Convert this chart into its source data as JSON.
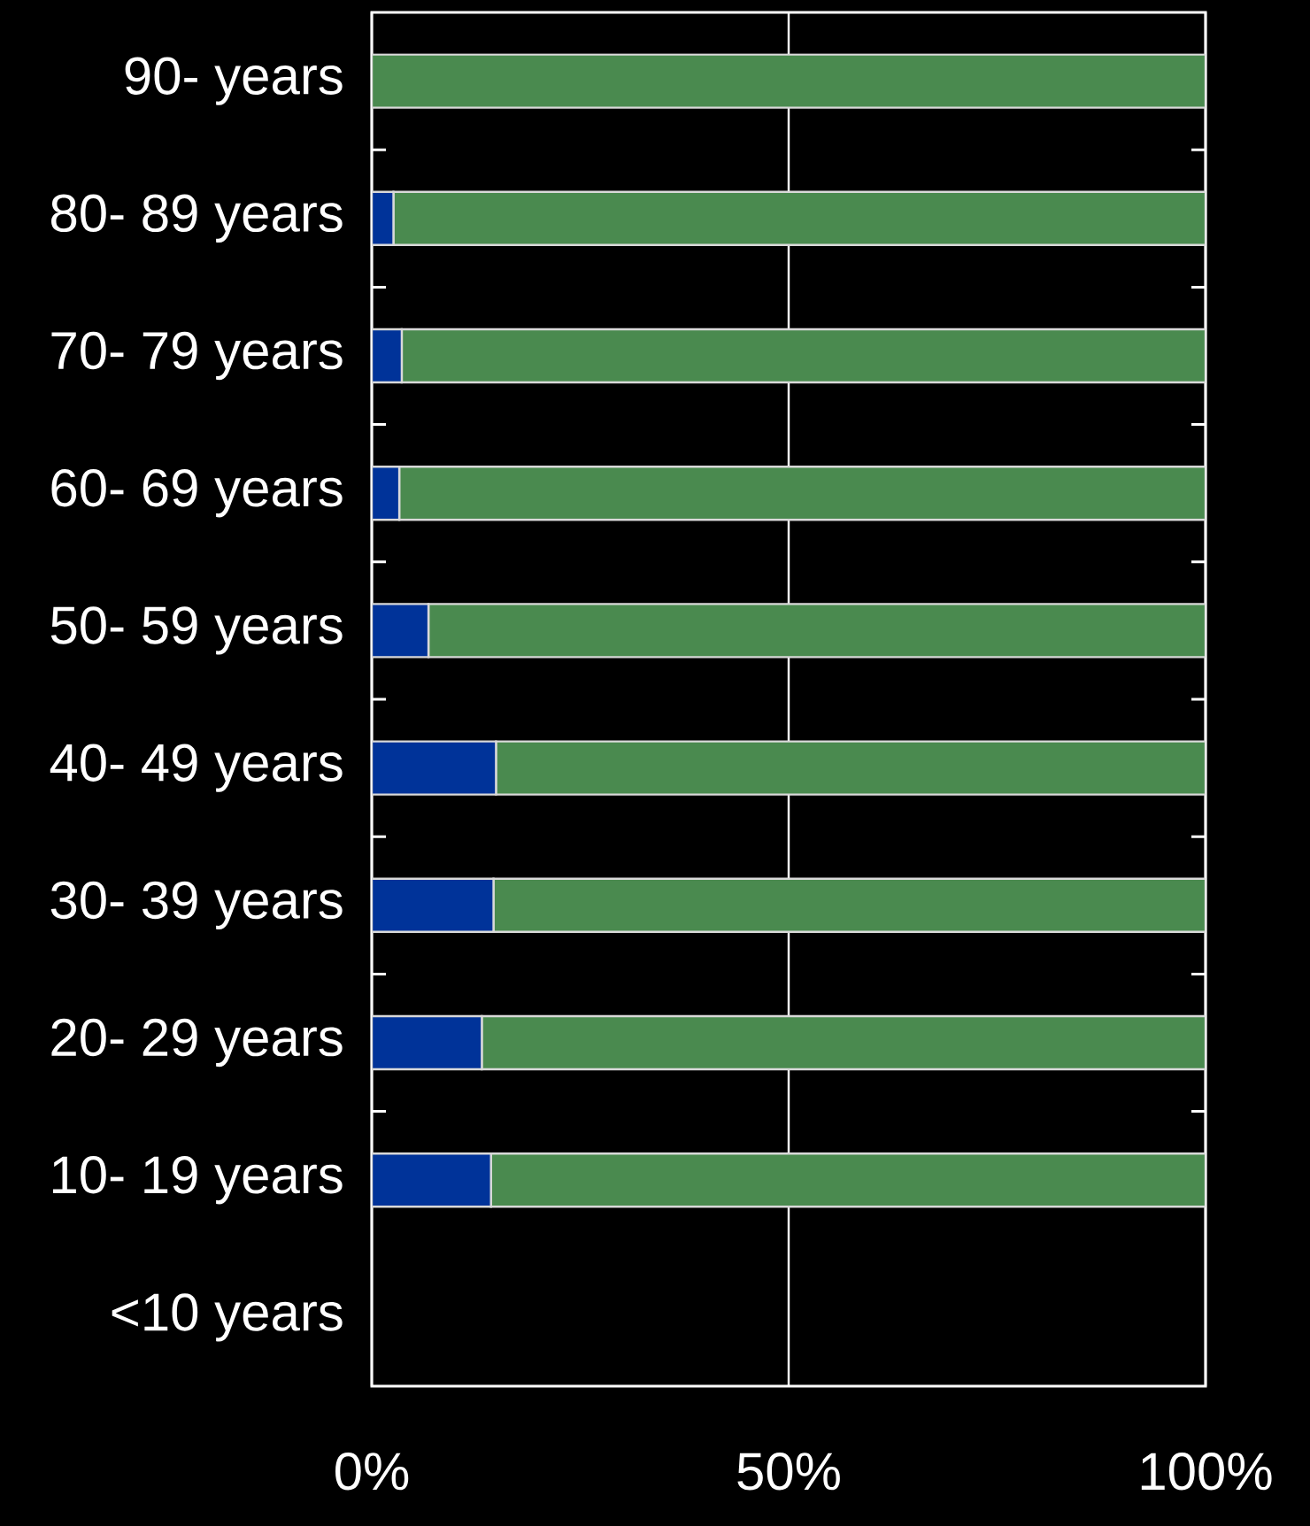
{
  "chart_data": {
    "type": "bar",
    "orientation": "horizontal",
    "stacked": true,
    "categories": [
      "90- years",
      "80- 89 years",
      "70- 79 years",
      "60- 69 years",
      "50- 59 years",
      "40- 49 years",
      "30- 39 years",
      "20- 29 years",
      "10- 19 years",
      "<10 years"
    ],
    "series": [
      {
        "color": "#003399",
        "values": [
          0,
          2.6,
          3.6,
          3.3,
          6.8,
          14.9,
          14.6,
          13.2,
          14.3,
          null
        ]
      },
      {
        "color": "#4a8a4f",
        "values": [
          100,
          97.4,
          96.4,
          96.7,
          93.2,
          85.1,
          85.4,
          86.8,
          85.7,
          null
        ]
      }
    ],
    "xlim": [
      0,
      100
    ],
    "xticks": [
      {
        "value": 0,
        "label": "0%"
      },
      {
        "value": 50,
        "label": "50%"
      },
      {
        "value": 100,
        "label": "100%"
      }
    ],
    "grid": "x"
  }
}
